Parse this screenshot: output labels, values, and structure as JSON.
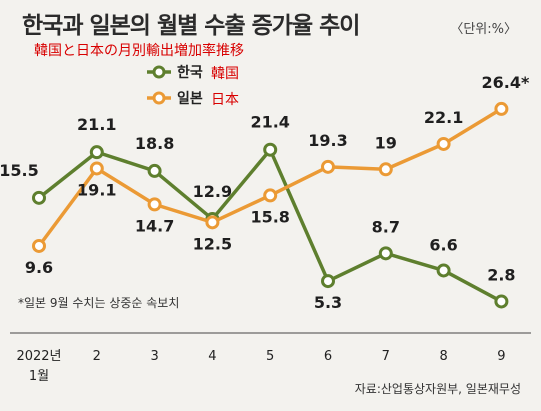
{
  "header": {
    "title": "한국과 일본의 월별 수출 증가율 추이",
    "subtitle_jp": "韓国と日本の月別輸出増加率推移",
    "unit": "〈단위:%〉"
  },
  "note": "*일본 9월 수치는 상중순 속보치",
  "source": "자료:산업통상자원부, 일본재무성",
  "colors": {
    "korea": "#5e7f2e",
    "japan": "#eb9a35"
  },
  "chart_data": {
    "type": "line",
    "title": "한국과 일본의 월별 수출 증가율 추이",
    "unit": "〈단위:%〉",
    "categories": [
      "2022년 1월",
      "2",
      "3",
      "4",
      "5",
      "6",
      "7",
      "8",
      "9"
    ],
    "tick_labels": [
      [
        "2022년",
        "1월"
      ],
      [
        "2"
      ],
      [
        "3"
      ],
      [
        "4"
      ],
      [
        "5"
      ],
      [
        "6"
      ],
      [
        "7"
      ],
      [
        "8"
      ],
      [
        "9"
      ]
    ],
    "series": [
      {
        "name": "한국",
        "name_jp": "韓国",
        "color": "#5e7f2e",
        "values": [
          15.5,
          21.1,
          18.8,
          12.9,
          21.4,
          5.3,
          8.7,
          6.6,
          2.8
        ],
        "labels": [
          "15.5",
          "21.1",
          "18.8",
          "12.9",
          "21.4",
          "5.3",
          "8.7",
          "6.6",
          "2.8"
        ]
      },
      {
        "name": "일본",
        "name_jp": "日本",
        "color": "#eb9a35",
        "values": [
          9.6,
          19.1,
          14.7,
          12.5,
          15.8,
          19.3,
          19.0,
          22.1,
          26.4
        ],
        "labels": [
          "9.6",
          "19.1",
          "14.7",
          "12.5",
          "15.8",
          "19.3",
          "19",
          "22.1",
          "26.4*"
        ]
      }
    ],
    "ylim": [
      2,
      27
    ],
    "grid": false,
    "legend_position": "top-center"
  }
}
